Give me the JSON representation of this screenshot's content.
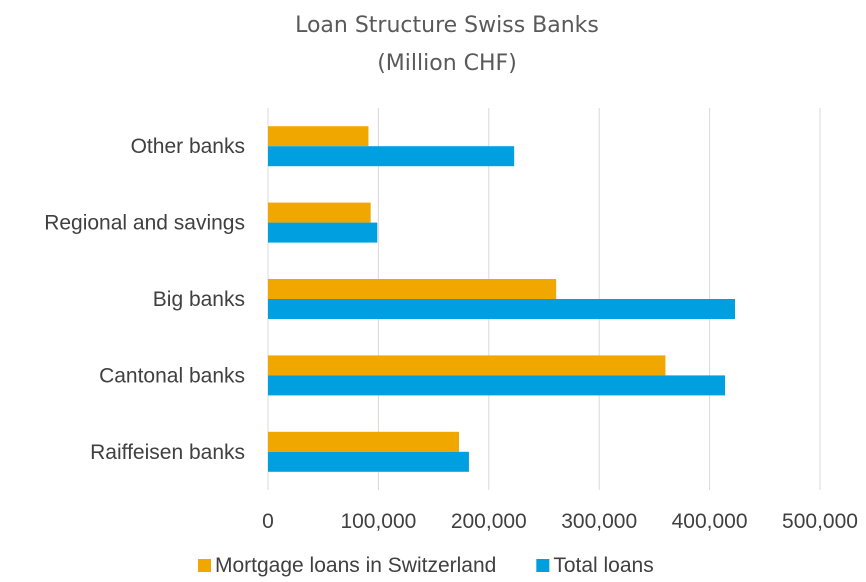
{
  "chart_data": {
    "type": "bar",
    "orientation": "horizontal",
    "title": "Loan Structure Swiss Banks",
    "subtitle": "(Million CHF)",
    "categories": [
      "Raiffeisen banks",
      "Cantonal banks",
      "Big banks",
      "Regional and savings",
      "Other banks"
    ],
    "series": [
      {
        "name": "Mortgage loans in Switzerland",
        "color": "#F0A800",
        "values": [
          173000,
          360000,
          261000,
          93000,
          91000
        ]
      },
      {
        "name": "Total loans",
        "color": "#009FDF",
        "values": [
          182000,
          414000,
          423000,
          99000,
          223000
        ]
      }
    ],
    "xlim": [
      0,
      500000
    ],
    "xticks": [
      0,
      100000,
      200000,
      300000,
      400000,
      500000
    ],
    "xtick_labels": [
      "0",
      "100,000",
      "200,000",
      "300,000",
      "400,000",
      "500,000"
    ],
    "grid": "vertical",
    "legend_position": "bottom"
  }
}
